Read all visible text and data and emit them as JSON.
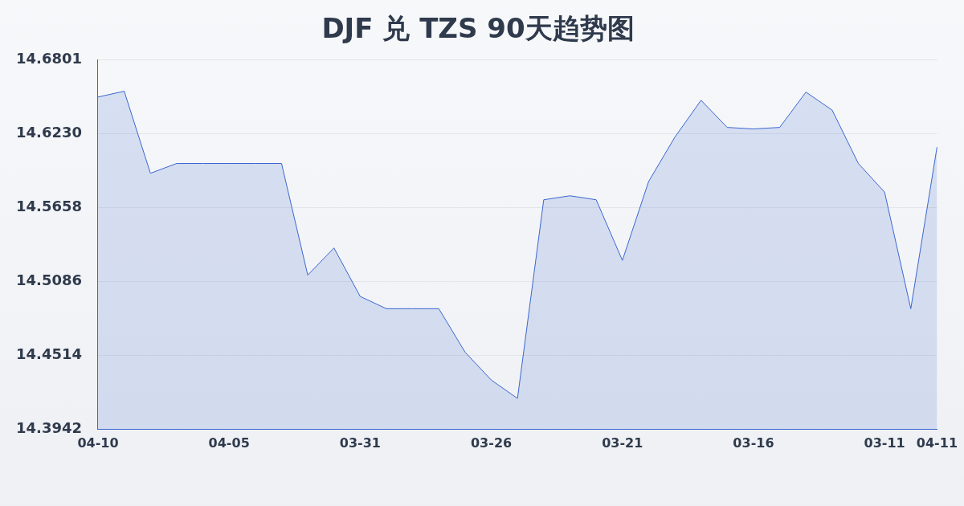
{
  "chart_data": {
    "type": "area",
    "title": "DJF 兑 TZS 90天趋势图",
    "categories": [
      "04-10",
      null,
      null,
      null,
      null,
      "04-05",
      null,
      null,
      null,
      null,
      "03-31",
      null,
      null,
      null,
      null,
      "03-26",
      null,
      null,
      null,
      null,
      "03-21",
      null,
      null,
      null,
      null,
      "03-16",
      null,
      null,
      null,
      null,
      "03-11",
      null,
      "04-11"
    ],
    "series": [
      {
        "color": "#3a66d0",
        "values": [
          14.6515,
          14.656,
          14.5925,
          14.6001,
          14.6001,
          14.6001,
          14.6001,
          14.6001,
          14.5137,
          14.5347,
          14.4972,
          14.4877,
          14.4877,
          14.4877,
          14.4541,
          14.4325,
          14.4183,
          14.572,
          14.5751,
          14.572,
          14.5251,
          14.5861,
          14.6204,
          14.649,
          14.628,
          14.6268,
          14.628,
          14.6553,
          14.6414,
          14.6001,
          14.5779,
          14.4877,
          14.6128
        ]
      }
    ],
    "ylim": [
      14.3942,
      14.6801
    ],
    "yticks": [
      14.3942,
      14.4514,
      14.5086,
      14.5658,
      {
        "value": 14.623,
        "label": "14.6230"
      },
      14.6801
    ],
    "grid": "y",
    "legend": false,
    "marker": "none",
    "line_style": "solid"
  }
}
